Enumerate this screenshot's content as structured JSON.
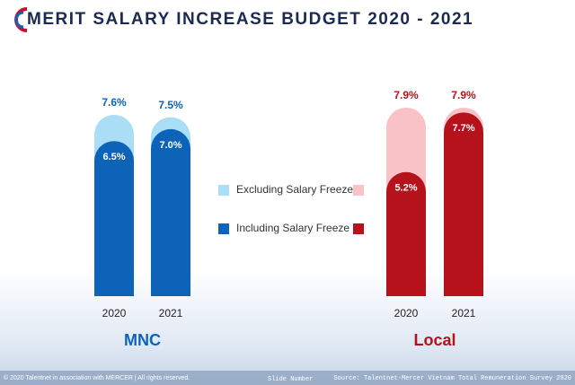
{
  "header": {
    "title": "MERIT SALARY INCREASE BUDGET 2020 - 2021"
  },
  "legend": {
    "items": [
      {
        "label": "Excluding Salary Freeze",
        "colors": [
          "#a9def6",
          "#f8c2c6"
        ]
      },
      {
        "label": "Including Salary Freeze",
        "colors": [
          "#0d63b8",
          "#b5121b"
        ]
      }
    ]
  },
  "chart_data": [
    {
      "type": "bar",
      "title": "MNC",
      "title_color": "#0d63b8",
      "categories": [
        "2020",
        "2021"
      ],
      "series": [
        {
          "color": "#a9def6",
          "label_color": "#0d63b8",
          "values": [
            7.6,
            7.5
          ],
          "value_labels": [
            "7.6%",
            "7.5%"
          ]
        },
        {
          "color": "#0d63b8",
          "label_color": "#ffffff",
          "values": [
            6.5,
            7.0
          ],
          "value_labels": [
            "6.5%",
            "7.0%"
          ]
        }
      ]
    },
    {
      "type": "bar",
      "title": "Local",
      "title_color": "#b5121b",
      "categories": [
        "2020",
        "2021"
      ],
      "series": [
        {
          "color": "#f8c2c6",
          "label_color": "#b5121b",
          "values": [
            7.9,
            7.9
          ],
          "value_labels": [
            "7.9%",
            "7.9%"
          ]
        },
        {
          "color": "#b5121b",
          "label_color": "#ffffff",
          "values": [
            5.2,
            7.7
          ],
          "value_labels": [
            "5.2%",
            "7.7%"
          ]
        }
      ]
    }
  ],
  "footer": {
    "rights": "© 2020 Talentnet in association with MERCER | All rights reserved.",
    "slide": "Slide Number",
    "source": "Source: Talentnet-Mercer Vietnam Total Remuneration Survey 2020"
  }
}
